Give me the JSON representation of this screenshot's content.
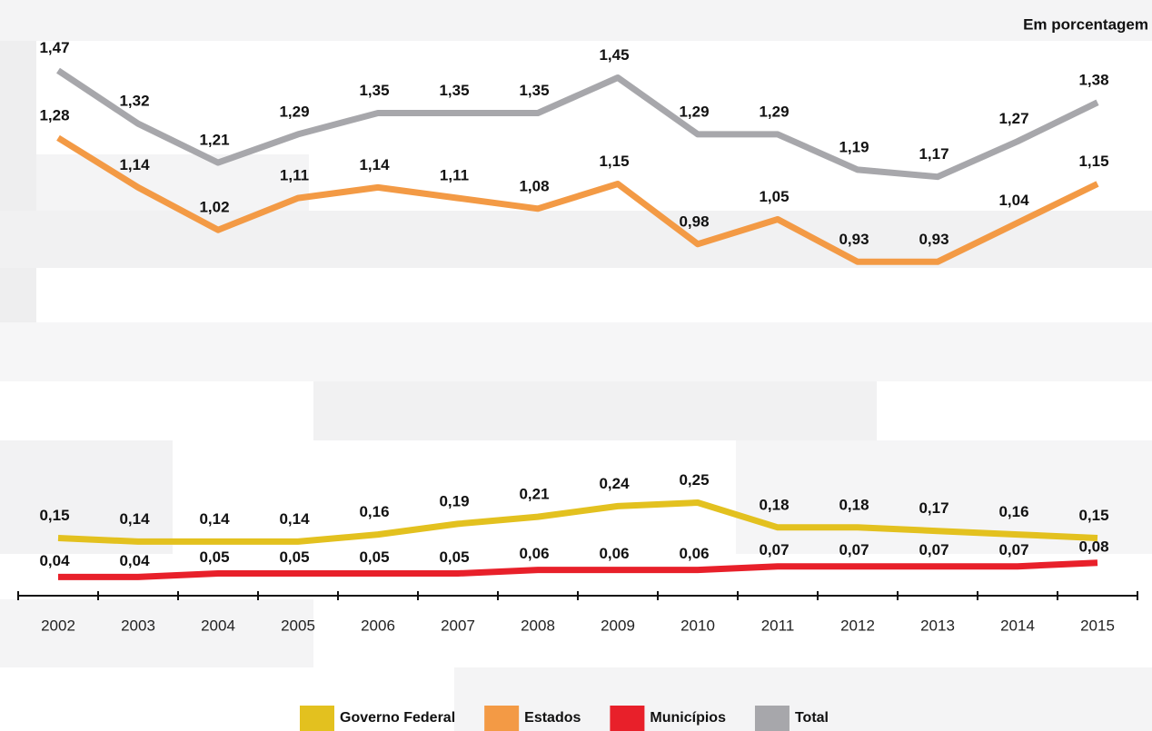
{
  "chart_data": {
    "type": "line",
    "subtitle": "Em porcentagem",
    "categories": [
      "2002",
      "2003",
      "2004",
      "2005",
      "2006",
      "2007",
      "2008",
      "2009",
      "2010",
      "2011",
      "2012",
      "2013",
      "2014",
      "2015"
    ],
    "ylim": [
      0,
      1.6
    ],
    "series": [
      {
        "name": "Governo Federal",
        "color": "#e3c11f",
        "values": [
          0.15,
          0.14,
          0.14,
          0.14,
          0.16,
          0.19,
          0.21,
          0.24,
          0.25,
          0.18,
          0.18,
          0.17,
          0.16,
          0.15
        ],
        "value_labels": [
          "0,15",
          "0,14",
          "0,14",
          "0,14",
          "0,16",
          "0,19",
          "0,21",
          "0,24",
          "0,25",
          "0,18",
          "0,18",
          "0,17",
          "0,16",
          "0,15"
        ]
      },
      {
        "name": "Estados",
        "color": "#f39a45",
        "values": [
          1.28,
          1.14,
          1.02,
          1.11,
          1.14,
          1.11,
          1.08,
          1.15,
          0.98,
          1.05,
          0.93,
          0.93,
          1.04,
          1.15
        ],
        "value_labels": [
          "1,28",
          "1,14",
          "1,02",
          "1,11",
          "1,14",
          "1,11",
          "1,08",
          "1,15",
          "0,98",
          "1,05",
          "0,93",
          "0,93",
          "1,04",
          "1,15"
        ]
      },
      {
        "name": "Municípios",
        "color": "#e8202a",
        "values": [
          0.04,
          0.04,
          0.05,
          0.05,
          0.05,
          0.05,
          0.06,
          0.06,
          0.06,
          0.07,
          0.07,
          0.07,
          0.07,
          0.08
        ],
        "value_labels": [
          "0,04",
          "0,04",
          "0,05",
          "0,05",
          "0,05",
          "0,05",
          "0,06",
          "0,06",
          "0,06",
          "0,07",
          "0,07",
          "0,07",
          "0,07",
          "0,08"
        ]
      },
      {
        "name": "Total",
        "color": "#a7a7ab",
        "values": [
          1.47,
          1.32,
          1.21,
          1.29,
          1.35,
          1.35,
          1.35,
          1.45,
          1.29,
          1.29,
          1.19,
          1.17,
          1.27,
          1.38
        ],
        "value_labels": [
          "1,47",
          "1,32",
          "1,21",
          "1,29",
          "1,35",
          "1,35",
          "1,35",
          "1,45",
          "1,29",
          "1,29",
          "1,19",
          "1,17",
          "1,27",
          "1,38"
        ]
      }
    ]
  }
}
